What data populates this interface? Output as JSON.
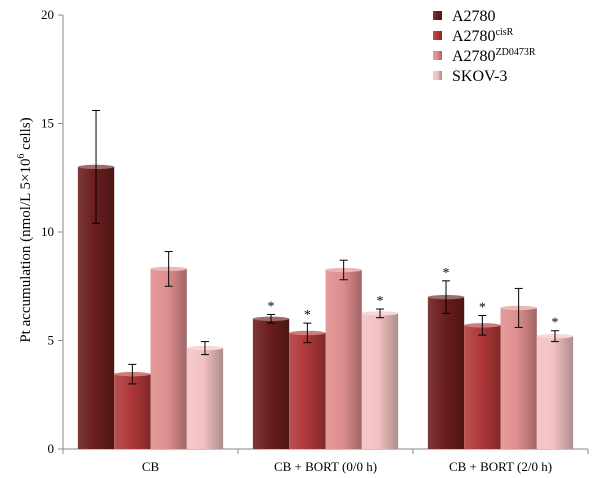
{
  "chart_data": {
    "type": "bar",
    "categories": [
      "CB",
      "CB + BORT (0/0 h)",
      "CB + BORT (2/0 h)"
    ],
    "ylabel": "Pt accumulation (nmol/L 5×10",
    "ylabel_sup": "6",
    "ylabel_tail": " cells)",
    "ylim": [
      0,
      20
    ],
    "yticks": [
      "0",
      "5",
      "10",
      "15",
      "20"
    ],
    "series": [
      {
        "name": "A2780",
        "name_sup": "",
        "color": "#6b1e1e",
        "values": [
          13.0,
          6.0,
          7.0
        ],
        "errors": [
          2.6,
          0.2,
          0.75
        ],
        "significant": [
          false,
          true,
          true
        ]
      },
      {
        "name": "A2780",
        "name_sup": "cisR",
        "color": "#b0393a",
        "values": [
          3.45,
          5.35,
          5.7
        ],
        "errors": [
          0.45,
          0.45,
          0.45
        ],
        "significant": [
          false,
          true,
          true
        ]
      },
      {
        "name": "A2780",
        "name_sup": "ZD0473R",
        "color": "#df8e8e",
        "values": [
          8.3,
          8.25,
          6.5
        ],
        "errors": [
          0.8,
          0.45,
          0.9
        ],
        "significant": [
          false,
          false,
          false
        ]
      },
      {
        "name": "SKOV-3",
        "name_sup": "",
        "color": "#f3c2c2",
        "values": [
          4.65,
          6.25,
          5.2
        ],
        "errors": [
          0.3,
          0.2,
          0.25
        ],
        "significant": [
          false,
          true,
          true
        ]
      }
    ],
    "significance_marker": "*",
    "legend": "top-right",
    "grid": false
  }
}
